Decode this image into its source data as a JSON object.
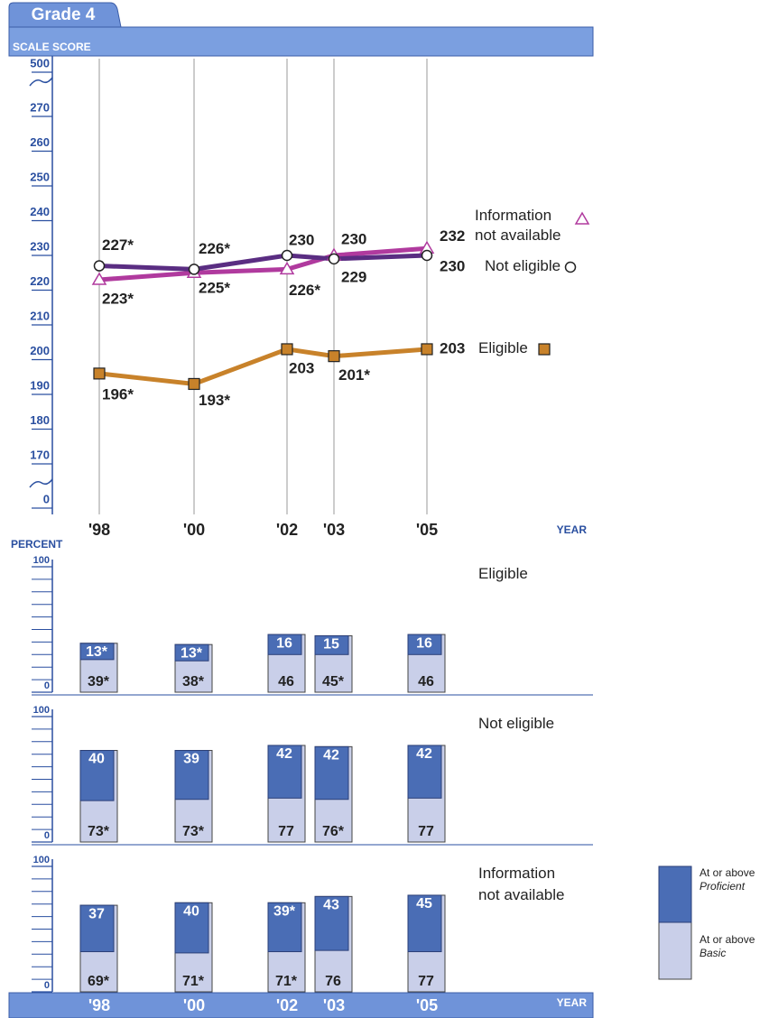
{
  "chart_data": [
    {
      "type": "line",
      "title": "Grade 4",
      "ylabel": "SCALE SCORE",
      "xlabel": "YEAR",
      "categories": [
        "'98",
        "'00",
        "'02",
        "'03",
        "'05"
      ],
      "ylim": [
        0,
        500
      ],
      "yticks": [
        0,
        170,
        180,
        190,
        200,
        210,
        220,
        230,
        240,
        250,
        260,
        270,
        500
      ],
      "grid": true,
      "series": [
        {
          "name": "Information not available",
          "color": "#b03a9e",
          "marker": "triangle",
          "values": [
            223,
            225,
            226,
            230,
            232
          ],
          "value_labels": [
            "223*",
            "225*",
            "226*",
            "230",
            "232"
          ]
        },
        {
          "name": "Not eligible",
          "color": "#5a2d82",
          "marker": "circle",
          "values": [
            227,
            226,
            230,
            229,
            230
          ],
          "value_labels": [
            "227*",
            "226*",
            "230",
            "229",
            "230"
          ]
        },
        {
          "name": "Eligible",
          "color": "#c8822a",
          "marker": "square",
          "values": [
            196,
            193,
            203,
            201,
            203
          ],
          "value_labels": [
            "196*",
            "193*",
            "203",
            "201*",
            "203"
          ]
        }
      ]
    },
    {
      "type": "bar",
      "ylabel": "PERCENT",
      "xlabel": "YEAR",
      "categories": [
        "'98",
        "'00",
        "'02",
        "'03",
        "'05"
      ],
      "ylim": [
        0,
        100
      ],
      "yticks": [
        0,
        100
      ],
      "legend": [
        {
          "text": "At or above",
          "level": "Proficient",
          "color": "#4a6db5"
        },
        {
          "text": "At or above",
          "level": "Basic",
          "color": "#c9cfe9"
        }
      ],
      "panels": [
        {
          "title": "Eligible",
          "proficient": {
            "values": [
              13,
              13,
              16,
              15,
              16
            ],
            "value_labels": [
              "13*",
              "13*",
              "16",
              "15",
              "16"
            ]
          },
          "basic": {
            "values": [
              39,
              38,
              46,
              45,
              46
            ],
            "value_labels": [
              "39*",
              "38*",
              "46",
              "45*",
              "46"
            ]
          }
        },
        {
          "title": "Not eligible",
          "proficient": {
            "values": [
              40,
              39,
              42,
              42,
              42
            ]
          },
          "basic": {
            "values": [
              73,
              73,
              77,
              76,
              77
            ],
            "value_labels": [
              "73*",
              "73*",
              "77",
              "76*",
              "77"
            ]
          }
        },
        {
          "title": "Information not available",
          "proficient": {
            "values": [
              37,
              40,
              39,
              43,
              45
            ],
            "value_labels": [
              "37",
              "40",
              "39*",
              "43",
              "45"
            ]
          },
          "basic": {
            "values": [
              69,
              71,
              71,
              76,
              77
            ],
            "value_labels": [
              "69*",
              "71*",
              "71*",
              "76",
              "77"
            ]
          }
        }
      ]
    }
  ]
}
